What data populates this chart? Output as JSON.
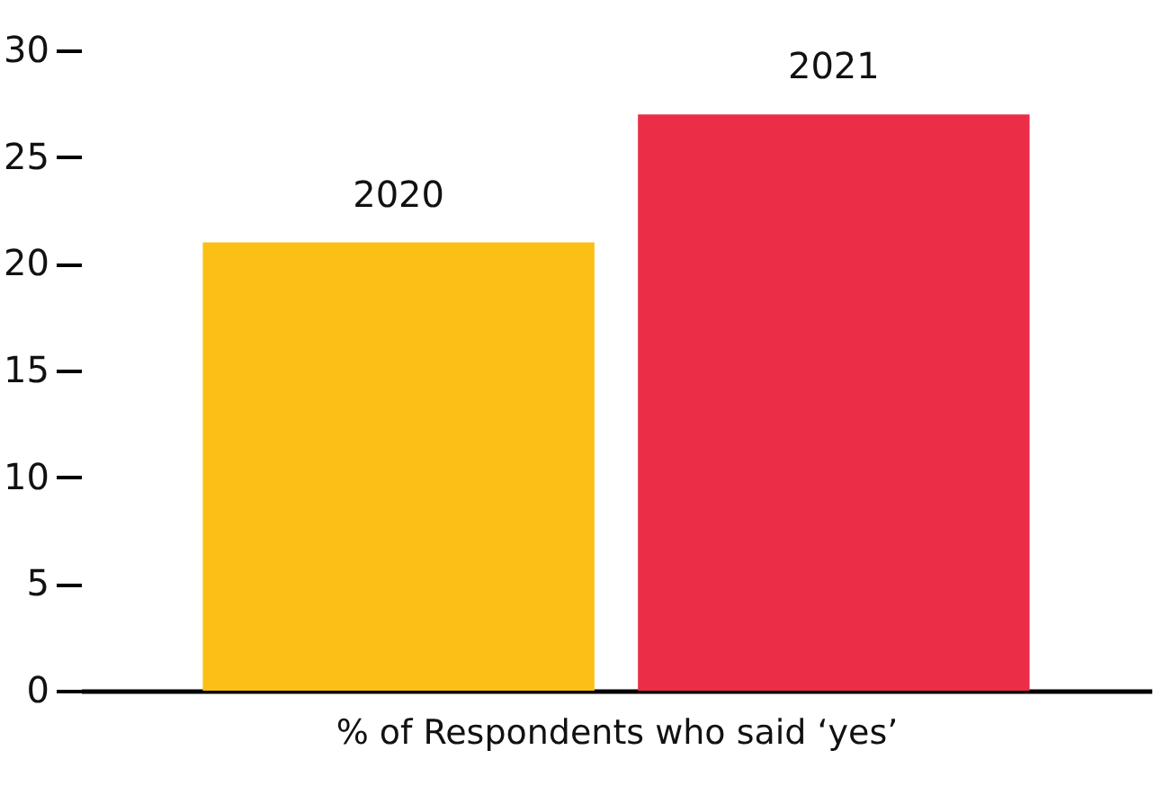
{
  "chart_data": {
    "type": "bar",
    "xlabel": "% of Respondents who said ‘yes’",
    "categories": [
      "2020",
      "2021"
    ],
    "values": [
      21,
      27
    ],
    "colors": [
      "#fbbf16",
      "#ec2d48"
    ],
    "ylim": [
      0,
      30
    ],
    "yticks": [
      0,
      5,
      10,
      15,
      20,
      25,
      30
    ],
    "grid": false
  }
}
